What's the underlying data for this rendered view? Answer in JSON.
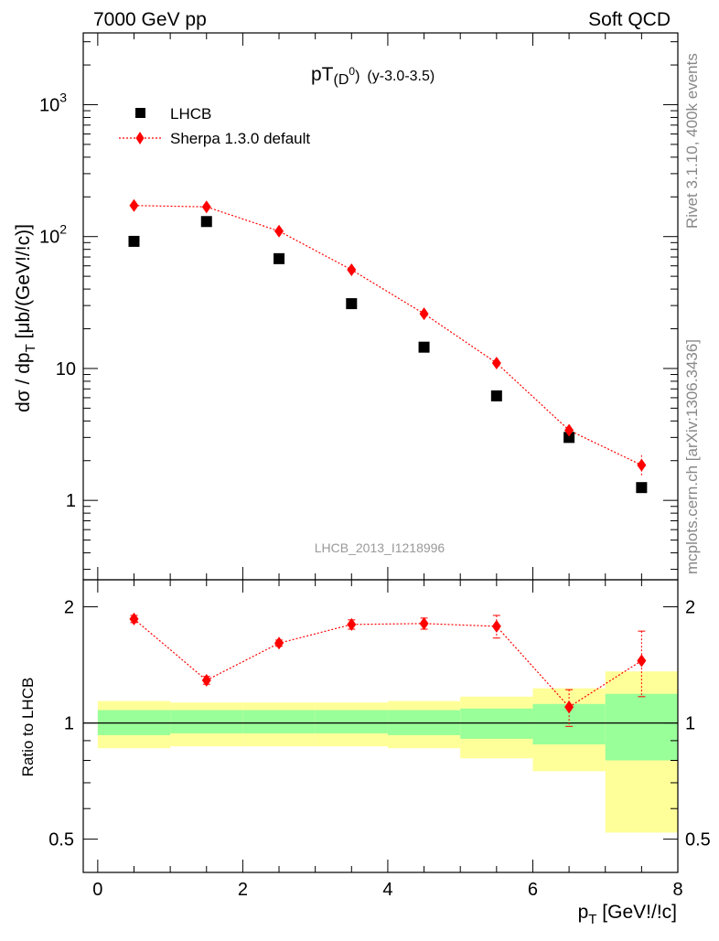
{
  "header": {
    "left": "7000 GeV pp",
    "right": "Soft QCD"
  },
  "side_labels": {
    "rivet": "Rivet 3.1.10,  400k events",
    "mcplots": "mcplots.cern.ch [arXiv:1306.3436]"
  },
  "colors": {
    "data": "#000000",
    "mc": "#ff0000",
    "band_inner": "#99ff99",
    "band_outer": "#ffff99"
  },
  "chart_data": [
    {
      "type": "scatter",
      "title": {
        "main": "pT",
        "sub_base": "(D",
        "sub_sup": "0",
        "sub_close": ")",
        "suffix": "(y-3.0-3.5)"
      },
      "ylabel": "dσ / dp_T [μb/(GeV!/!c)]",
      "yscale": "log",
      "xlim": [
        -0.2,
        8.0
      ],
      "ylim": [
        0.25,
        3500
      ],
      "yticks": [
        {
          "value": 1,
          "label": "1"
        },
        {
          "value": 10,
          "label": "10"
        },
        {
          "value": 100,
          "label": "10",
          "sup": "2"
        },
        {
          "value": 1000,
          "label": "10",
          "sup": "3"
        }
      ],
      "watermark": "LHCB_2013_I1218996",
      "legend": {
        "placement": "top-left"
      },
      "series": [
        {
          "name": "LHCB",
          "marker": "square",
          "x": [
            0.5,
            1.5,
            2.5,
            3.5,
            4.5,
            5.5,
            6.5,
            7.5
          ],
          "y": [
            92,
            130,
            68,
            31,
            14.5,
            6.2,
            3.0,
            1.25
          ]
        },
        {
          "name": "Sherpa 1.3.0 default",
          "marker": "diamond",
          "line": "dotted",
          "x": [
            0.5,
            1.5,
            2.5,
            3.5,
            4.5,
            5.5,
            6.5,
            7.5
          ],
          "y": [
            172,
            168,
            110,
            56,
            26,
            11,
            3.4,
            1.85
          ],
          "yerr": [
            4,
            4,
            3,
            1.5,
            0.8,
            0.4,
            0.25,
            0.35
          ]
        }
      ]
    },
    {
      "type": "scatter",
      "ylabel": "Ratio to LHCB",
      "xlabel": "p_T [GeV!/!c]",
      "yscale": "log",
      "xlim": [
        -0.2,
        8.0
      ],
      "ylim": [
        0.41,
        2.35
      ],
      "xticks": [
        {
          "value": 0,
          "label": "0"
        },
        {
          "value": 2,
          "label": "2"
        },
        {
          "value": 4,
          "label": "4"
        },
        {
          "value": 6,
          "label": "6"
        },
        {
          "value": 8,
          "label": "8"
        }
      ],
      "yticks": [
        {
          "value": 0.5,
          "label": "0.5"
        },
        {
          "value": 1,
          "label": "1"
        },
        {
          "value": 2,
          "label": "2"
        }
      ],
      "bands": {
        "bin_edges": [
          0,
          1,
          2,
          3,
          4,
          5,
          6,
          7,
          8
        ],
        "inner_low": [
          0.93,
          0.94,
          0.94,
          0.94,
          0.93,
          0.91,
          0.88,
          0.8
        ],
        "inner_high": [
          1.08,
          1.08,
          1.08,
          1.08,
          1.08,
          1.09,
          1.12,
          1.19
        ],
        "outer_low": [
          0.86,
          0.87,
          0.87,
          0.87,
          0.86,
          0.81,
          0.75,
          0.52
        ],
        "outer_high": [
          1.14,
          1.13,
          1.13,
          1.13,
          1.14,
          1.17,
          1.23,
          1.36
        ]
      },
      "series": [
        {
          "name": "Sherpa 1.3.0 default",
          "marker": "diamond",
          "line": "dotted",
          "x": [
            0.5,
            1.5,
            2.5,
            3.5,
            4.5,
            5.5,
            6.5,
            7.5
          ],
          "y": [
            1.86,
            1.29,
            1.61,
            1.8,
            1.81,
            1.78,
            1.1,
            1.45
          ],
          "yerr": [
            0.04,
            0.03,
            0.03,
            0.05,
            0.06,
            0.12,
            0.12,
            0.28
          ]
        }
      ]
    }
  ]
}
